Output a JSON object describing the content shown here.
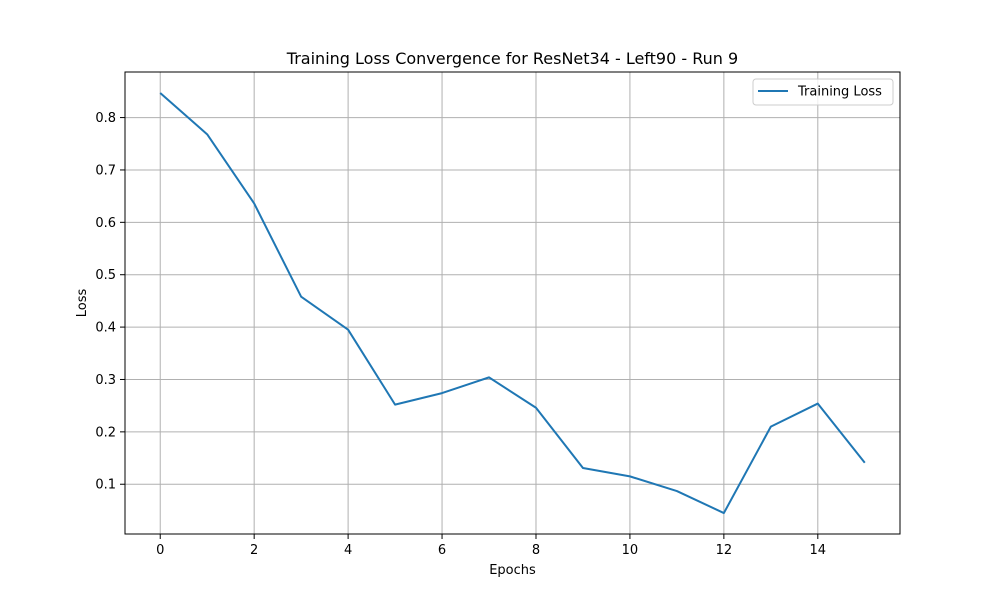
{
  "chart_data": {
    "type": "line",
    "title": "Training Loss Convergence for ResNet34 - Left90 - Run 9",
    "xlabel": "Epochs",
    "ylabel": "Loss",
    "x": [
      0,
      1,
      2,
      3,
      4,
      5,
      6,
      7,
      8,
      9,
      10,
      11,
      12,
      13,
      14,
      15
    ],
    "series": [
      {
        "name": "Training Loss",
        "color": "#1f77b4",
        "values": [
          0.847,
          0.768,
          0.636,
          0.458,
          0.395,
          0.252,
          0.274,
          0.304,
          0.246,
          0.131,
          0.115,
          0.087,
          0.045,
          0.21,
          0.254,
          0.141
        ]
      }
    ],
    "xlim": [
      -0.75,
      15.75
    ],
    "ylim": [
      0.005,
      0.887
    ],
    "xticks": [
      0,
      2,
      4,
      6,
      8,
      10,
      12,
      14
    ],
    "xtick_labels": [
      "0",
      "2",
      "4",
      "6",
      "8",
      "10",
      "12",
      "14"
    ],
    "yticks": [
      0.1,
      0.2,
      0.3,
      0.4,
      0.5,
      0.6,
      0.7,
      0.8
    ],
    "ytick_labels": [
      "0.1",
      "0.2",
      "0.3",
      "0.4",
      "0.5",
      "0.6",
      "0.7",
      "0.8"
    ],
    "grid": true,
    "grid_color": "#b0b0b0",
    "legend_position": "top-right"
  }
}
